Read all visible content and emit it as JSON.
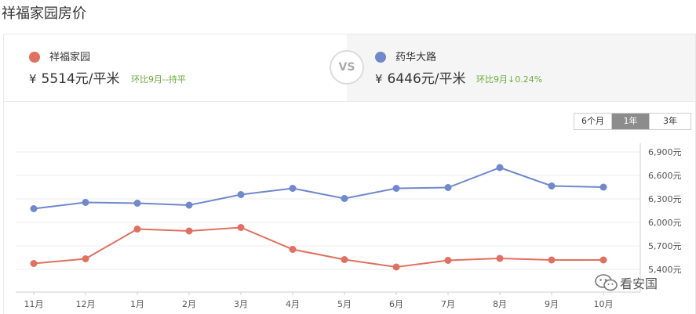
{
  "page": {
    "title": "祥福家园房价"
  },
  "compare": {
    "left": {
      "name": "祥福家园",
      "currency": "¥",
      "price": "5514元/平米",
      "trend": "环比9月--持平",
      "color": "#e07060"
    },
    "vs": "VS",
    "right": {
      "name": "药华大路",
      "currency": "¥",
      "price": "6446元/平米",
      "trend": "环比9月↓0.24%",
      "color": "#7088cc"
    }
  },
  "range_tabs": [
    {
      "label": "6个月",
      "active": false
    },
    {
      "label": "1年",
      "active": true
    },
    {
      "label": "3年",
      "active": false
    }
  ],
  "watermark": {
    "text": "看安国",
    "icon": "wechat-icon"
  },
  "chart_data": {
    "type": "line",
    "categories": [
      "11月",
      "12月",
      "1月",
      "2月",
      "3月",
      "4月",
      "5月",
      "6月",
      "7月",
      "8月",
      "9月",
      "10月"
    ],
    "series": [
      {
        "name": "祥福家园",
        "color": "#e07060",
        "values": [
          5475,
          5535,
          5915,
          5890,
          5935,
          5655,
          5525,
          5430,
          5515,
          5540,
          5520,
          5520
        ]
      },
      {
        "name": "药华大路",
        "color": "#7088cc",
        "values": [
          6175,
          6255,
          6245,
          6220,
          6355,
          6435,
          6305,
          6435,
          6445,
          6700,
          6465,
          6450
        ]
      }
    ],
    "yticks": [
      "5,400元",
      "5,700元",
      "6,000元",
      "6,300元",
      "6,600元",
      "6,900元"
    ],
    "ylim": [
      5300,
      7000
    ],
    "grid": true
  }
}
